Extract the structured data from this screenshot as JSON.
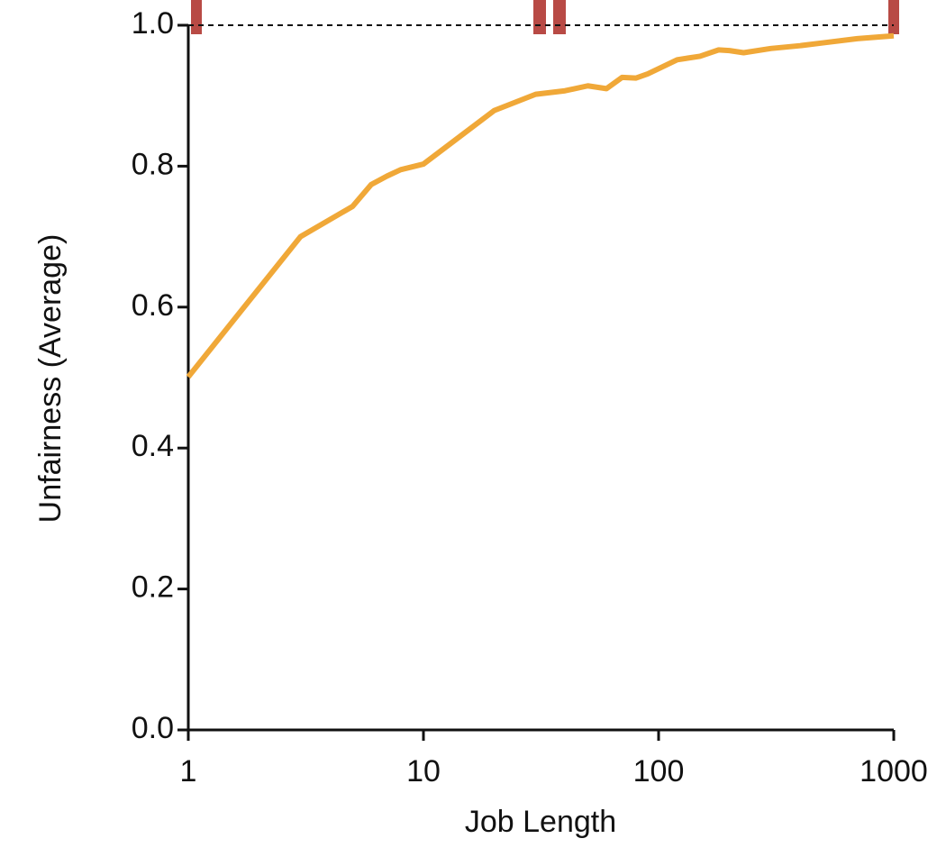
{
  "chart_data": {
    "type": "line",
    "xlabel": "Job Length",
    "ylabel": "Unfairness (Average)",
    "x": [
      1,
      3,
      5,
      6,
      7,
      8,
      10,
      20,
      30,
      40,
      50,
      60,
      70,
      80,
      90,
      120,
      150,
      180,
      200,
      230,
      300,
      400,
      500,
      700,
      1000
    ],
    "series": [
      {
        "color": "#f0a838",
        "values": [
          0.501,
          0.7,
          0.743,
          0.774,
          0.786,
          0.795,
          0.803,
          0.879,
          0.902,
          0.907,
          0.914,
          0.91,
          0.926,
          0.925,
          0.931,
          0.951,
          0.956,
          0.965,
          0.964,
          0.961,
          0.967,
          0.971,
          0.975,
          0.981,
          0.985
        ]
      }
    ],
    "xscale": "log",
    "xlim": [
      1,
      1000
    ],
    "xticks": [
      1,
      10,
      100,
      1000
    ],
    "ylim": [
      0,
      1
    ],
    "yticks": [
      {
        "value": 0,
        "label": "0.0"
      },
      {
        "value": 0.2,
        "label": "0.2"
      },
      {
        "value": 0.4,
        "label": "0.4"
      },
      {
        "value": 0.6,
        "label": "0.6"
      },
      {
        "value": 0.8,
        "label": "0.8"
      },
      {
        "value": 1,
        "label": "1.0"
      }
    ],
    "reference_line": 1
  }
}
